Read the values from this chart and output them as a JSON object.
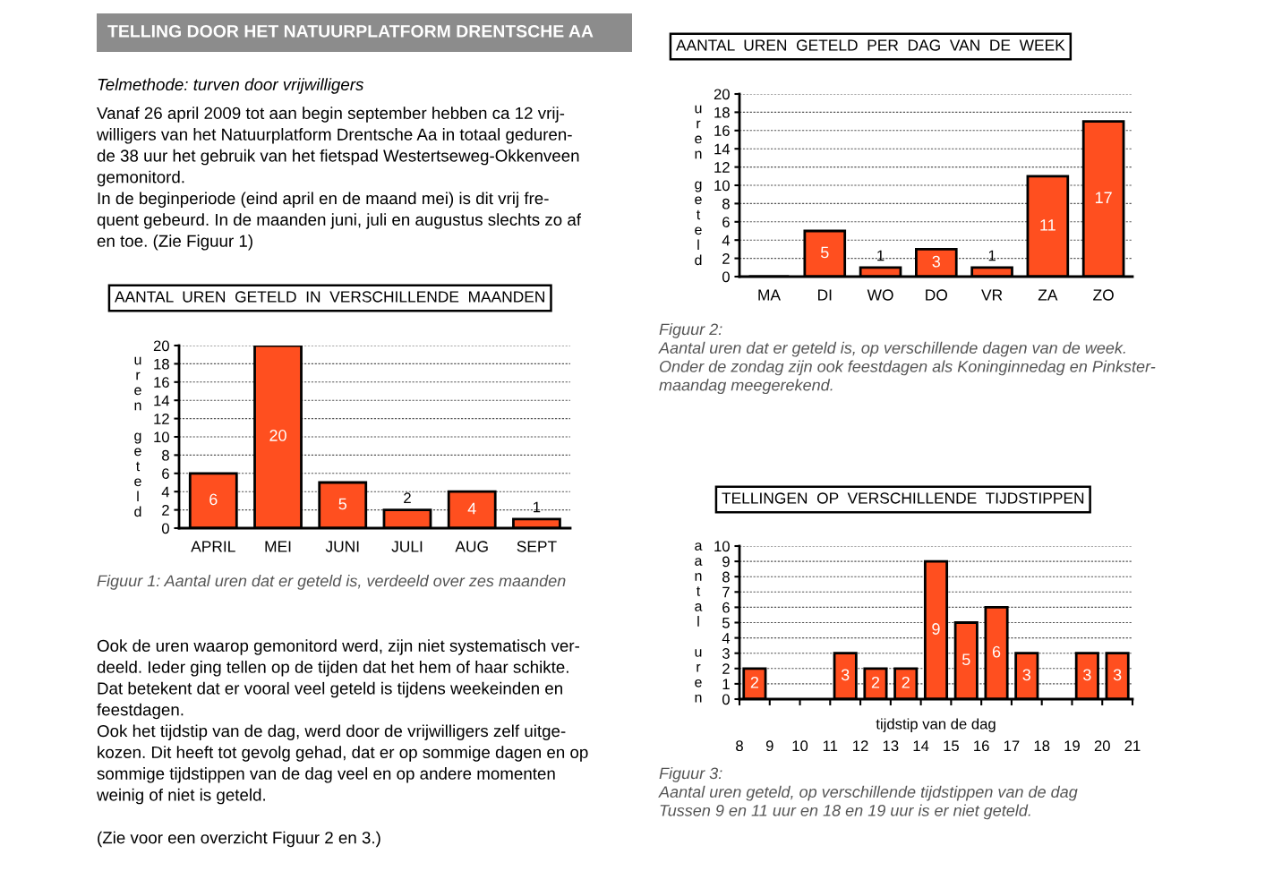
{
  "chart_data": [
    {
      "type": "other",
      "title": "TELLING DOOR HET NATUURPLATFORM DRENTSCHE AA",
      "subtitle": "Telmethode: turven door vrijwilligers",
      "annotations": [
        "Vanaf 26 april 2009 tot aan begin september hebben ca 12 vrij-\nwilligers van het Natuurplatform Drentsche Aa in totaal geduren-\nde 38 uur het gebruik van het fietspad Westertseweg-Okkenveen\ngemonitord.",
        "In de beginperiode (eind april en de maand mei) is dit vrij fre-\nquent gebeurd. In de maanden juni, juli en augustus slechts zo af\nen toe. (Zie Figuur 1)"
      ]
    },
    {
      "type": "bar",
      "title": "AANTAL  UREN  GETELD  IN  VERSCHILLENDE  MAANDEN",
      "ylabel": "uren geteld",
      "categories": [
        "APRIL",
        "MEI",
        "JUNI",
        "JULI",
        "AUG",
        "SEPT"
      ],
      "values": [
        6,
        20,
        5,
        2,
        4,
        1
      ],
      "color": "#ff4f1f",
      "ylim": [
        0,
        20
      ],
      "yticks": [
        0,
        2,
        4,
        6,
        8,
        10,
        12,
        14,
        16,
        18,
        20
      ],
      "grid": "y",
      "data_labels": true,
      "annotations": [
        "Figuur 1: Aantal uren dat er geteld is, verdeeld over zes maanden"
      ]
    },
    {
      "type": "other",
      "annotations": [
        "Ook de uren waarop gemonitord werd, zijn niet systematisch ver-\ndeeld. Ieder ging tellen op de tijden dat het hem of haar schikte.\nDat betekent dat er vooral veel geteld is tijdens weekeinden en\nfeestdagen.",
        "Ook het tijdstip van de dag, werd door de vrijwilligers zelf uitge-\nkozen. Dit heeft tot gevolg gehad, dat er op sommige dagen en op\nsommige tijdstippen van de dag veel en op andere momenten\nweinig of niet is geteld.",
        "(Zie voor een overzicht Figuur 2 en 3.)"
      ]
    },
    {
      "type": "bar",
      "title": "AANTAL  UREN  GETELD  PER  DAG  VAN  DE  WEEK",
      "ylabel": "uren geteld",
      "categories": [
        "MA",
        "DI",
        "WO",
        "DO",
        "VR",
        "ZA",
        "ZO"
      ],
      "values": [
        0,
        5,
        1,
        3,
        1,
        11,
        17
      ],
      "value_labels": [
        null,
        "5",
        "1",
        "3",
        "1",
        "11",
        "17"
      ],
      "color": "#ff4f1f",
      "ylim": [
        0,
        20
      ],
      "yticks": [
        0,
        2,
        4,
        6,
        8,
        10,
        12,
        14,
        16,
        18,
        20
      ],
      "grid": "y",
      "annotations": [
        "Figuur 2:\nAantal uren dat er geteld is, op verschillende dagen van de week.\nOnder de zondag zijn ook feestdagen als Koninginnedag en Pinkster-\nmaandag meegerekend."
      ]
    },
    {
      "type": "histogram",
      "title": "TELLINGEN  OP  VERSCHILLENDE  TIJDSTIPPEN",
      "ylabel": "aantal uren",
      "xlabel": "tijdstip van de dag",
      "bins": [
        8,
        9,
        10,
        11,
        12,
        13,
        14,
        15,
        16,
        17,
        18,
        19,
        20,
        21
      ],
      "values": [
        2,
        0,
        0,
        3,
        2,
        2,
        9,
        5,
        6,
        3,
        0,
        3,
        3
      ],
      "value_labels": [
        "2",
        null,
        null,
        "3",
        "2",
        "2",
        "9",
        "5",
        "6",
        "3",
        null,
        "3",
        "3"
      ],
      "color": "#ff4f1f",
      "xlim": [
        8,
        21
      ],
      "xticks": [
        8,
        9,
        10,
        11,
        12,
        13,
        14,
        15,
        16,
        17,
        18,
        19,
        20,
        21
      ],
      "ylim": [
        0,
        10
      ],
      "yticks": [
        0,
        1,
        2,
        3,
        4,
        5,
        6,
        7,
        8,
        9,
        10
      ],
      "grid": "y",
      "annotations": [
        "Figuur 3:\nAantal uren geteld, op verschillende tijdstippen van de dag\nTussen 9 en 11 uur en 18 en 19 uur is er niet geteld."
      ]
    }
  ]
}
